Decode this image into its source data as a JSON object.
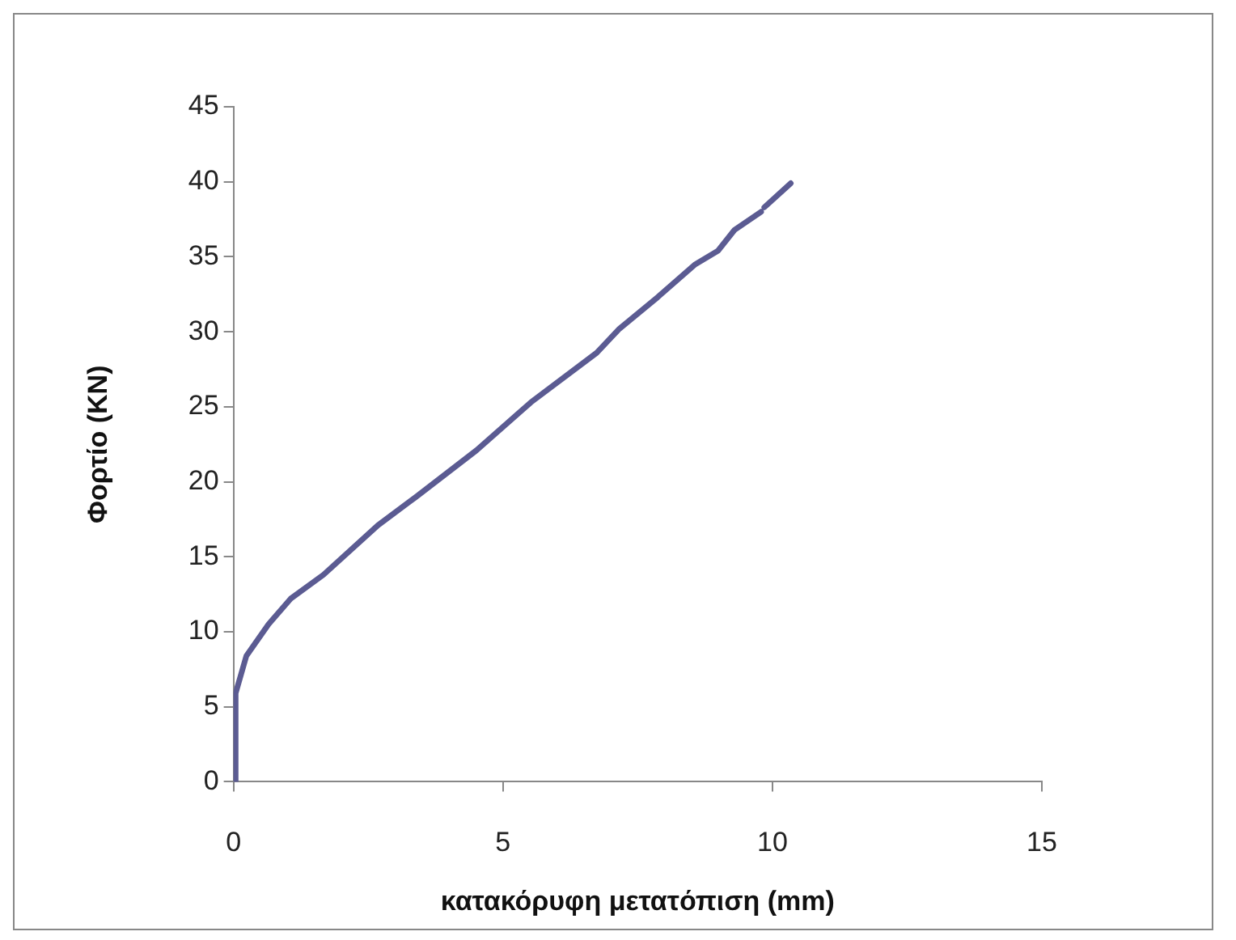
{
  "chart_data": {
    "type": "line",
    "xlabel": "κατακόρυφη μετατόπιση (mm)",
    "ylabel": "Φορτίο (KN)",
    "xlim": [
      0,
      15
    ],
    "xticks": [
      0,
      5,
      10,
      15
    ],
    "ylim": [
      0,
      45
    ],
    "yticks": [
      0,
      5,
      10,
      15,
      20,
      25,
      30,
      35,
      40,
      45
    ],
    "grid": false,
    "legend": false,
    "marker": "none",
    "line_style": "solid",
    "series": [
      {
        "color": "#5b5b92",
        "x": [
          0.03,
          0.04,
          0.24,
          0.65,
          1.06,
          1.67,
          2.68,
          3.39,
          4.51,
          5.52,
          6.74,
          7.16,
          7.87,
          8.57,
          8.99,
          9.3,
          9.79,
          9.8,
          9.85,
          10.34
        ],
        "values": [
          0,
          5.9,
          8.4,
          10.5,
          12.2,
          13.8,
          17.1,
          19,
          22.1,
          25.3,
          28.6,
          30.2,
          32.3,
          34.5,
          35.4,
          36.8,
          38,
          null,
          38.3,
          39.9
        ]
      }
    ]
  }
}
